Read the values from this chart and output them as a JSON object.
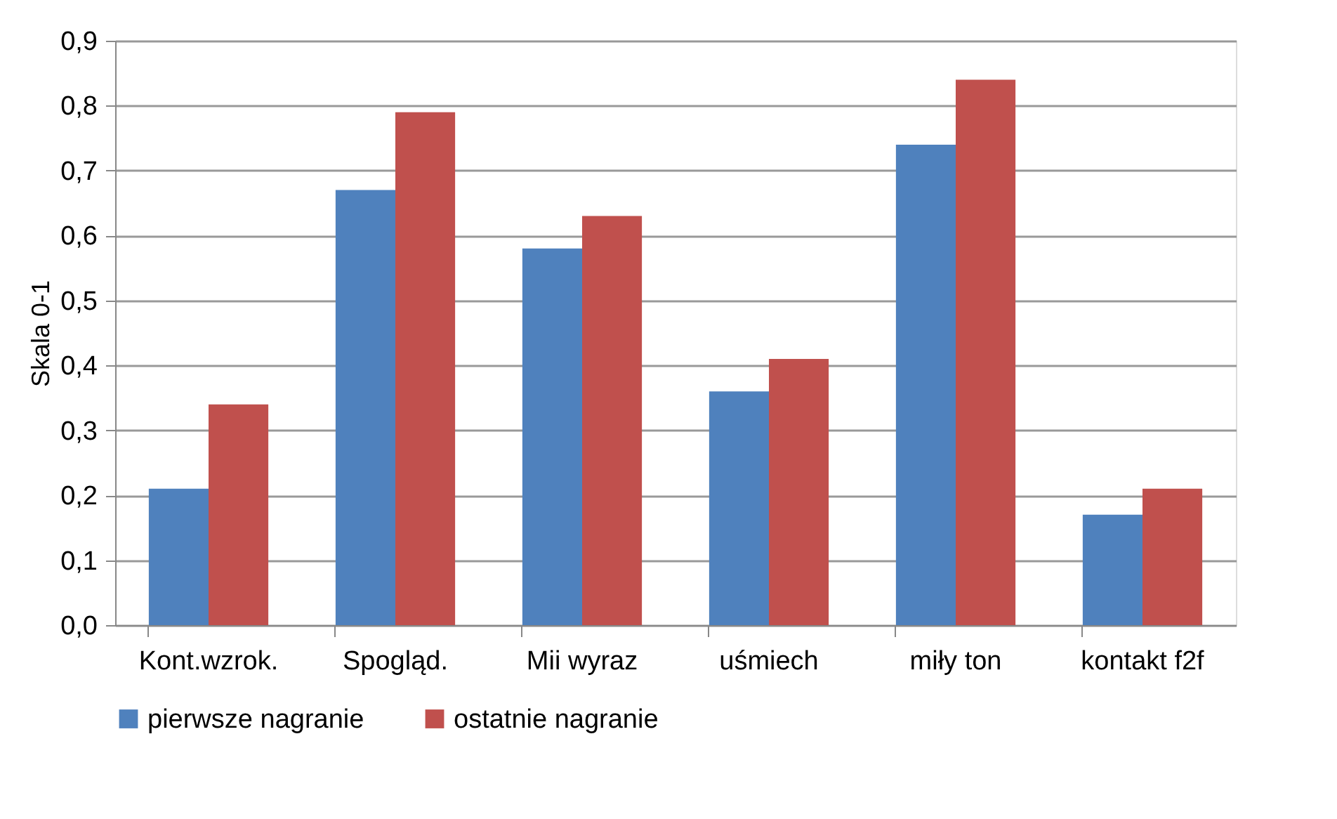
{
  "chart_data": {
    "type": "bar",
    "ylabel": "Skala 0-1",
    "categories": [
      "Kont.wzrok.",
      "Spogląd.",
      "Mii wyraz",
      "uśmiech",
      "miły ton",
      "kontakt f2f"
    ],
    "series": [
      {
        "name": "pierwsze nagranie",
        "color": "#4f81bd",
        "values": [
          0.21,
          0.67,
          0.58,
          0.36,
          0.74,
          0.17
        ]
      },
      {
        "name": "ostatnie nagranie",
        "color": "#c0504d",
        "values": [
          0.34,
          0.79,
          0.63,
          0.41,
          0.84,
          0.21
        ]
      }
    ],
    "ylim": [
      0,
      0.9
    ],
    "yticks": [
      {
        "value": 0,
        "label": "0,0"
      },
      {
        "value": 0.1,
        "label": "0,1"
      },
      {
        "value": 0.2,
        "label": "0,2"
      },
      {
        "value": 0.3,
        "label": "0,3"
      },
      {
        "value": 0.4,
        "label": "0,4"
      },
      {
        "value": 0.5,
        "label": "0,5"
      },
      {
        "value": 0.6,
        "label": "0,6"
      },
      {
        "value": 0.7,
        "label": "0,7"
      },
      {
        "value": 0.8,
        "label": "0,8"
      },
      {
        "value": 0.9,
        "label": "0,9"
      }
    ],
    "grid": "y",
    "legend": "bottom"
  }
}
